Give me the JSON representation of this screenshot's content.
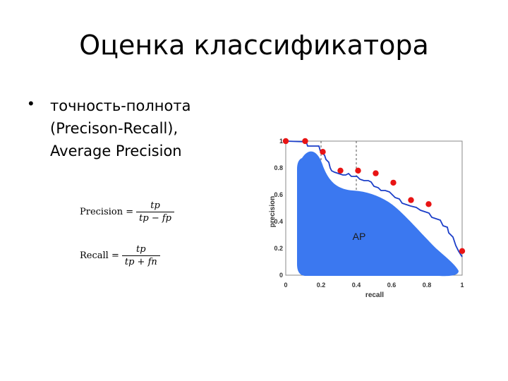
{
  "slide": {
    "title": "Оценка классификатора",
    "bullet_marker": "•",
    "bullet_lines": [
      "точность-полнота",
      "(Precison-Recall),",
      "Average Precision"
    ]
  },
  "formulas": {
    "precision": {
      "label": "Precision =",
      "numerator": "tp",
      "denominator": "tp − fp"
    },
    "recall": {
      "label": "Recall =",
      "numerator": "tp",
      "denominator": "tp + fn"
    }
  },
  "chart_data": {
    "type": "area",
    "xlabel": "recall",
    "ylabel": "precision",
    "xlim": [
      0,
      1
    ],
    "ylim": [
      0,
      1
    ],
    "x_ticks": [
      "0",
      "0.2",
      "0.4",
      "0.6",
      "0.8",
      "1"
    ],
    "y_ticks": [
      "0",
      "0.2",
      "0.4",
      "0.6",
      "0.8",
      "1"
    ],
    "annotation": "AP",
    "area_color": "#3b78f0",
    "curve_color": "#1b3ec8",
    "point_color": "#e81414",
    "grid": "dashed lines at recall 0.2 and 0.4",
    "pr_points": [
      {
        "x": 0.0,
        "y": 1.0
      },
      {
        "x": 0.11,
        "y": 1.0
      },
      {
        "x": 0.21,
        "y": 0.92
      },
      {
        "x": 0.31,
        "y": 0.78
      },
      {
        "x": 0.41,
        "y": 0.78
      },
      {
        "x": 0.51,
        "y": 0.76
      },
      {
        "x": 0.61,
        "y": 0.69
      },
      {
        "x": 0.71,
        "y": 0.56
      },
      {
        "x": 0.81,
        "y": 0.53
      },
      {
        "x": 1.0,
        "y": 0.18
      }
    ]
  }
}
